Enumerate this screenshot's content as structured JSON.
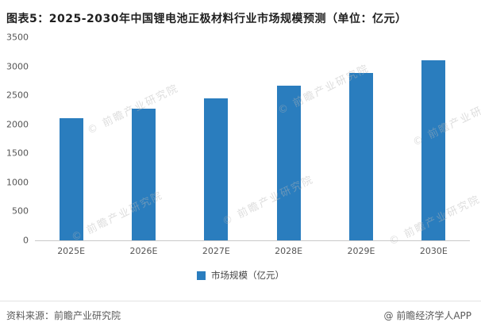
{
  "title": "图表5：2025-2030年中国锂电池正极材料行业市场规模预测（单位：亿元）",
  "chart_data": {
    "type": "bar",
    "title": "2025-2030年中国锂电池正极材料行业市场规模预测（单位：亿元）",
    "categories": [
      "2025E",
      "2026E",
      "2027E",
      "2028E",
      "2029E",
      "2030E"
    ],
    "values": [
      2100,
      2270,
      2450,
      2660,
      2890,
      3110
    ],
    "xlabel": "",
    "ylabel": "",
    "ylim": [
      0,
      3500
    ],
    "ytick_interval": 500,
    "grid": false,
    "legend": "市场规模（亿元）",
    "legend_position": "bottom",
    "bar_color": "#2A7DBE"
  },
  "watermark": {
    "text": "© 前瞻产业研究院"
  },
  "footer": {
    "source": "资料来源：前瞻产业研究院",
    "credit": "@ 前瞻经济学人APP"
  }
}
